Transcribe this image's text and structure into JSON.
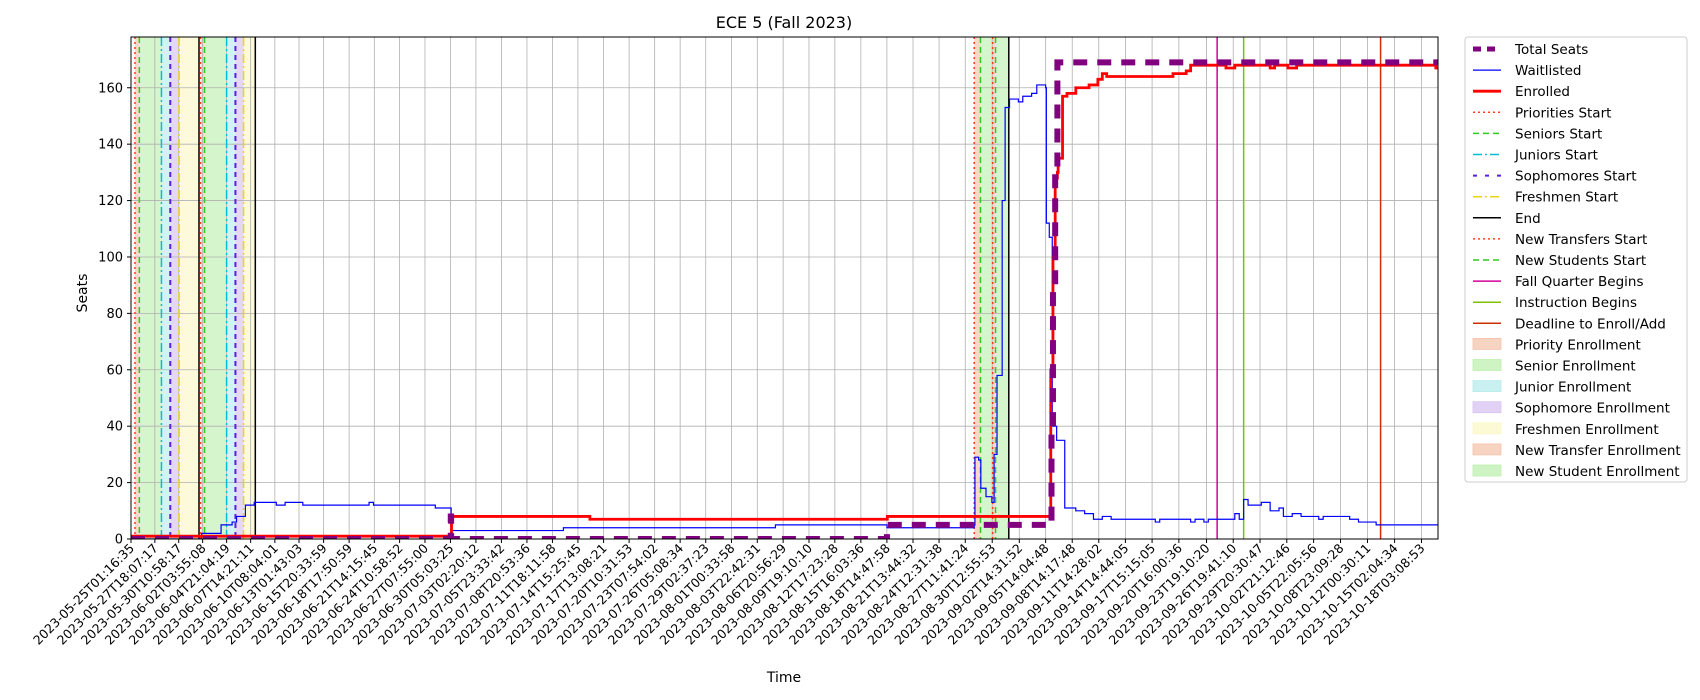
{
  "chart_data": {
    "type": "line",
    "title": "ECE 5 (Fall 2023)",
    "xlabel": "Time",
    "ylabel": "Seats",
    "x_is_time_axis": true,
    "ylim": [
      0,
      178
    ],
    "yticks": [
      0,
      20,
      40,
      60,
      80,
      100,
      120,
      140,
      160
    ],
    "grid": true,
    "legend_position": "outside-right",
    "time_window": [
      "2023-05-25T01:16:35",
      "2023-10-20T00:00:00"
    ],
    "xticks": [
      "2023-05-25T01:16:35",
      "2023-05-27T18:07:17",
      "2023-05-30T10:58:17",
      "2023-06-02T03:55:08",
      "2023-06-04T21:04:19",
      "2023-06-07T14:21:11",
      "2023-06-10T08:04:01",
      "2023-06-13T01:43:03",
      "2023-06-15T20:33:59",
      "2023-06-18T17:50:59",
      "2023-06-21T14:15:45",
      "2023-06-24T10:58:52",
      "2023-06-27T07:55:00",
      "2023-06-30T05:03:25",
      "2023-07-03T02:20:12",
      "2023-07-05T23:33:42",
      "2023-07-08T20:53:36",
      "2023-07-11T18:11:58",
      "2023-07-14T15:25:45",
      "2023-07-17T13:08:21",
      "2023-07-20T10:31:53",
      "2023-07-23T07:54:02",
      "2023-07-26T05:08:34",
      "2023-07-29T02:37:23",
      "2023-08-01T00:33:58",
      "2023-08-03T22:42:31",
      "2023-08-06T20:56:29",
      "2023-08-09T19:10:10",
      "2023-08-12T17:23:28",
      "2023-08-15T16:03:36",
      "2023-08-18T14:47:58",
      "2023-08-21T13:44:32",
      "2023-08-24T12:31:38",
      "2023-08-27T11:41:24",
      "2023-08-30T12:55:53",
      "2023-09-02T14:31:52",
      "2023-09-05T14:04:48",
      "2023-09-08T14:17:48",
      "2023-09-11T14:28:02",
      "2023-09-14T14:44:05",
      "2023-09-17T15:15:05",
      "2023-09-20T16:00:36",
      "2023-09-23T19:10:20",
      "2023-09-26T19:41:10",
      "2023-09-29T20:30:47",
      "2023-10-02T21:12:46",
      "2023-10-05T22:05:56",
      "2023-10-08T23:09:28",
      "2023-10-12T00:30:11",
      "2023-10-15T02:04:34",
      "2023-10-18T03:08:53"
    ],
    "periods": [
      {
        "label": "Priority Enrollment",
        "start": "2023-05-25T12:00",
        "end": "2023-05-26T00:00",
        "color": "#f4c4ac"
      },
      {
        "label": "Senior Enrollment",
        "start": "2023-05-26T00:00",
        "end": "2023-05-28T12:00",
        "color": "#bff0b0"
      },
      {
        "label": "Junior Enrollment",
        "start": "2023-05-28T12:00",
        "end": "2023-05-29T12:00",
        "color": "#b8ecec"
      },
      {
        "label": "Sophomore Enrollment",
        "start": "2023-05-29T12:00",
        "end": "2023-05-30T12:00",
        "color": "#d7c3f2"
      },
      {
        "label": "Freshmen Enrollment",
        "start": "2023-05-30T12:00",
        "end": "2023-06-01T18:00",
        "color": "#fbf8c6"
      },
      {
        "label": "Priority Enrollment",
        "start": "2023-06-01T22:00",
        "end": "2023-06-02T09:00",
        "color": "#f4c4ac"
      },
      {
        "label": "Senior Enrollment",
        "start": "2023-06-02T09:00",
        "end": "2023-06-04T21:00",
        "color": "#bff0b0"
      },
      {
        "label": "Junior Enrollment",
        "start": "2023-06-04T21:00",
        "end": "2023-06-05T21:00",
        "color": "#b8ecec"
      },
      {
        "label": "Sophomore Enrollment",
        "start": "2023-06-05T21:00",
        "end": "2023-06-06T19:00",
        "color": "#d7c3f2"
      },
      {
        "label": "Freshmen Enrollment",
        "start": "2023-06-06T19:00",
        "end": "2023-06-08T03:00",
        "color": "#fbf8c6"
      },
      {
        "label": "New Transfer Enrollment",
        "start": "2023-08-28T12:00",
        "end": "2023-08-29T05:00",
        "color": "#f4c4ac"
      },
      {
        "label": "New Student Enrollment",
        "start": "2023-08-29T05:00",
        "end": "2023-08-30T14:00",
        "color": "#bff0b0"
      },
      {
        "label": "New Transfer Enrollment",
        "start": "2023-08-30T14:00",
        "end": "2023-08-30T22:00",
        "color": "#f4c4ac"
      },
      {
        "label": "New Student Enrollment",
        "start": "2023-08-30T22:00",
        "end": "2023-09-01T10:00",
        "color": "#bff0b0"
      }
    ],
    "events": [
      {
        "label": "Priorities Start",
        "t": "2023-05-25T12:00",
        "color": "#ff3b1f",
        "dash": "2,3",
        "width": 1.5
      },
      {
        "label": "Seniors Start",
        "t": "2023-05-26T00:00",
        "color": "#2ecc1f",
        "dash": "6,4",
        "width": 1.5
      },
      {
        "label": "Juniors Start",
        "t": "2023-05-28T12:00",
        "color": "#00bfd8",
        "dash": "9,3,2,3",
        "width": 1.5
      },
      {
        "label": "Sophomores Start",
        "t": "2023-05-29T12:00",
        "color": "#5a1fe0",
        "dash": "5,4",
        "width": 2
      },
      {
        "label": "Freshmen Start",
        "t": "2023-05-30T12:00",
        "color": "#e8d800",
        "dash": "9,3,2,3",
        "width": 1.5
      },
      {
        "label": "End",
        "t": "2023-06-01T18:00",
        "color": "#000000",
        "dash": "",
        "width": 1.5
      },
      {
        "label": "Priorities Start",
        "t": "2023-06-01T22:00",
        "color": "#ff3b1f",
        "dash": "2,3",
        "width": 1.5
      },
      {
        "label": "Seniors Start",
        "t": "2023-06-02T09:00",
        "color": "#2ecc1f",
        "dash": "6,4",
        "width": 1.5
      },
      {
        "label": "Juniors Start",
        "t": "2023-06-04T21:00",
        "color": "#00bfd8",
        "dash": "9,3,2,3",
        "width": 1.5
      },
      {
        "label": "Sophomores Start",
        "t": "2023-06-05T21:00",
        "color": "#5a1fe0",
        "dash": "5,4",
        "width": 2
      },
      {
        "label": "Freshmen Start",
        "t": "2023-06-06T19:00",
        "color": "#e8d800",
        "dash": "9,3,2,3",
        "width": 1.5
      },
      {
        "label": "End",
        "t": "2023-06-08T03:00",
        "color": "#000000",
        "dash": "",
        "width": 1.5
      },
      {
        "label": "New Transfers Start",
        "t": "2023-08-28T12:00",
        "color": "#ff3b1f",
        "dash": "2,3",
        "width": 1.5
      },
      {
        "label": "New Students Start",
        "t": "2023-08-29T05:00",
        "color": "#2ecc1f",
        "dash": "6,4",
        "width": 1.5
      },
      {
        "label": "New Transfers Start",
        "t": "2023-08-30T14:00",
        "color": "#ff3b1f",
        "dash": "2,3",
        "width": 1.5
      },
      {
        "label": "New Students Start",
        "t": "2023-08-30T22:00",
        "color": "#2ecc1f",
        "dash": "6,4",
        "width": 1.5
      },
      {
        "label": "End",
        "t": "2023-09-01T10:00",
        "color": "#000000",
        "dash": "",
        "width": 1.5
      },
      {
        "label": "Fall Quarter Begins",
        "t": "2023-09-25T00:00",
        "color": "#d4009a",
        "dash": "",
        "width": 1.5
      },
      {
        "label": "Instruction Begins",
        "t": "2023-09-28T00:00",
        "color": "#7fbf00",
        "dash": "",
        "width": 1.5
      },
      {
        "label": "Deadline to Enroll/Add",
        "t": "2023-10-13T12:00",
        "color": "#cc2f00",
        "dash": "",
        "width": 1.5
      }
    ],
    "series": [
      {
        "name": "Total Seats",
        "color": "#800080",
        "width": 6,
        "dash": "14,10",
        "step": true,
        "points": [
          [
            "2023-05-25T01:16:35",
            0
          ],
          [
            "2023-06-30T05:00:00",
            0
          ],
          [
            "2023-06-30T06:00:00",
            8
          ],
          [
            "2023-06-30T07:00:00",
            0
          ],
          [
            "2023-08-18T14:00:00",
            0
          ],
          [
            "2023-08-18T15:00:00",
            5
          ],
          [
            "2023-09-06T02:00:00",
            5
          ],
          [
            "2023-09-06T06:00:00",
            40
          ],
          [
            "2023-09-06T10:00:00",
            90
          ],
          [
            "2023-09-06T16:00:00",
            130
          ],
          [
            "2023-09-06T22:00:00",
            169
          ],
          [
            "2023-10-20T00:00:00",
            169
          ]
        ]
      },
      {
        "name": "Waitlisted",
        "color": "#0000ff",
        "width": 1.2,
        "dash": "",
        "step": true,
        "points": [
          [
            "2023-05-25T01:16:35",
            0
          ],
          [
            "2023-06-02T00:00:00",
            0
          ],
          [
            "2023-06-02T01:00:00",
            2
          ],
          [
            "2023-06-04T00:00:00",
            2
          ],
          [
            "2023-06-04T06:00:00",
            5
          ],
          [
            "2023-06-05T12:00:00",
            6
          ],
          [
            "2023-06-06T00:00:00",
            8
          ],
          [
            "2023-06-07T00:00:00",
            12
          ],
          [
            "2023-06-08T00:00:00",
            13
          ],
          [
            "2023-06-10T12:00:00",
            12
          ],
          [
            "2023-06-11T12:00:00",
            13
          ],
          [
            "2023-06-13T12:00:00",
            12
          ],
          [
            "2023-06-21T00:00:00",
            13
          ],
          [
            "2023-06-21T12:00:00",
            12
          ],
          [
            "2023-06-28T12:00:00",
            11
          ],
          [
            "2023-06-30T07:00:00",
            3
          ],
          [
            "2023-07-13T00:00:00",
            4
          ],
          [
            "2023-08-06T00:00:00",
            5
          ],
          [
            "2023-08-18T15:00:00",
            4
          ],
          [
            "2023-08-28T12:00:00",
            5
          ],
          [
            "2023-08-28T14:00:00",
            29
          ],
          [
            "2023-08-29T00:00:00",
            28
          ],
          [
            "2023-08-29T06:00:00",
            18
          ],
          [
            "2023-08-29T20:00:00",
            15
          ],
          [
            "2023-08-30T12:00:00",
            13
          ],
          [
            "2023-08-30T18:00:00",
            30
          ],
          [
            "2023-08-31T02:00:00",
            58
          ],
          [
            "2023-08-31T16:00:00",
            120
          ],
          [
            "2023-09-01T00:00:00",
            153
          ],
          [
            "2023-09-01T12:00:00",
            156
          ],
          [
            "2023-09-02T12:00:00",
            155
          ],
          [
            "2023-09-03T00:00:00",
            157
          ],
          [
            "2023-09-04T00:00:00",
            158
          ],
          [
            "2023-09-04T14:00:00",
            161
          ],
          [
            "2023-09-05T14:00:00",
            160
          ],
          [
            "2023-09-05T16:00:00",
            112
          ],
          [
            "2023-09-06T00:00:00",
            107
          ],
          [
            "2023-09-06T08:00:00",
            40
          ],
          [
            "2023-09-06T20:00:00",
            35
          ],
          [
            "2023-09-07T18:00:00",
            11
          ],
          [
            "2023-09-09T00:00:00",
            10
          ],
          [
            "2023-09-10T00:00:00",
            9
          ],
          [
            "2023-09-11T00:00:00",
            7
          ],
          [
            "2023-09-12T00:00:00",
            8
          ],
          [
            "2023-09-13T00:00:00",
            7
          ],
          [
            "2023-09-18T00:00:00",
            6
          ],
          [
            "2023-09-18T12:00:00",
            7
          ],
          [
            "2023-09-22T00:00:00",
            6
          ],
          [
            "2023-09-22T12:00:00",
            7
          ],
          [
            "2023-09-23T12:00:00",
            6
          ],
          [
            "2023-09-24T00:00:00",
            7
          ],
          [
            "2023-09-27T00:00:00",
            9
          ],
          [
            "2023-09-27T12:00:00",
            7
          ],
          [
            "2023-09-28T00:00:00",
            14
          ],
          [
            "2023-09-28T12:00:00",
            12
          ],
          [
            "2023-09-30T00:00:00",
            13
          ],
          [
            "2023-10-01T00:00:00",
            10
          ],
          [
            "2023-10-02T00:00:00",
            11
          ],
          [
            "2023-10-02T12:00:00",
            8
          ],
          [
            "2023-10-03T12:00:00",
            9
          ],
          [
            "2023-10-04T12:00:00",
            8
          ],
          [
            "2023-10-06T12:00:00",
            7
          ],
          [
            "2023-10-07T00:00:00",
            8
          ],
          [
            "2023-10-10T00:00:00",
            7
          ],
          [
            "2023-10-11T00:00:00",
            6
          ],
          [
            "2023-10-13T00:00:00",
            5
          ],
          [
            "2023-10-20T00:00:00",
            5
          ]
        ]
      },
      {
        "name": "Enrolled",
        "color": "#ff0000",
        "width": 2.8,
        "dash": "",
        "step": true,
        "points": [
          [
            "2023-05-25T01:16:35",
            1
          ],
          [
            "2023-06-30T05:00:00",
            1
          ],
          [
            "2023-06-30T08:00:00",
            8
          ],
          [
            "2023-07-15T12:00:00",
            8
          ],
          [
            "2023-07-16T00:00:00",
            7
          ],
          [
            "2023-08-18T14:00:00",
            7
          ],
          [
            "2023-08-18T16:00:00",
            8
          ],
          [
            "2023-09-05T20:00:00",
            8
          ],
          [
            "2023-09-06T04:00:00",
            60
          ],
          [
            "2023-09-06T10:00:00",
            100
          ],
          [
            "2023-09-06T16:00:00",
            128
          ],
          [
            "2023-09-06T22:00:00",
            130
          ],
          [
            "2023-09-07T00:00:00",
            135
          ],
          [
            "2023-09-07T12:00:00",
            157
          ],
          [
            "2023-09-08T00:00:00",
            158
          ],
          [
            "2023-09-09T00:00:00",
            160
          ],
          [
            "2023-09-10T12:00:00",
            161
          ],
          [
            "2023-09-11T12:00:00",
            163
          ],
          [
            "2023-09-12T00:00:00",
            165
          ],
          [
            "2023-09-12T12:00:00",
            164
          ],
          [
            "2023-09-20T00:00:00",
            165
          ],
          [
            "2023-09-21T12:00:00",
            166
          ],
          [
            "2023-09-22T00:00:00",
            168
          ],
          [
            "2023-09-26T00:00:00",
            167
          ],
          [
            "2023-09-27T00:00:00",
            168
          ],
          [
            "2023-10-01T00:00:00",
            167
          ],
          [
            "2023-10-01T12:00:00",
            168
          ],
          [
            "2023-10-03T00:00:00",
            167
          ],
          [
            "2023-10-04T00:00:00",
            168
          ],
          [
            "2023-10-19T12:00:00",
            168
          ],
          [
            "2023-10-19T18:00:00",
            167
          ],
          [
            "2023-10-20T00:00:00",
            167
          ]
        ]
      }
    ],
    "legend": [
      {
        "label": "Total Seats",
        "kind": "line",
        "color": "#800080",
        "dash": "8,6",
        "width": 5
      },
      {
        "label": "Waitlisted",
        "kind": "line",
        "color": "#0000ff",
        "dash": "",
        "width": 1.2
      },
      {
        "label": "Enrolled",
        "kind": "line",
        "color": "#ff0000",
        "dash": "",
        "width": 2.8
      },
      {
        "label": "Priorities Start",
        "kind": "line",
        "color": "#ff3b1f",
        "dash": "2,3",
        "width": 1.5
      },
      {
        "label": "Seniors Start",
        "kind": "line",
        "color": "#2ecc1f",
        "dash": "6,4",
        "width": 1.5
      },
      {
        "label": "Juniors Start",
        "kind": "line",
        "color": "#00bfd8",
        "dash": "9,3,2,3",
        "width": 1.5
      },
      {
        "label": "Sophomores Start",
        "kind": "line",
        "color": "#5a1fe0",
        "dash": "4,8",
        "width": 2
      },
      {
        "label": "Freshmen Start",
        "kind": "line",
        "color": "#e8d800",
        "dash": "9,3,2,3",
        "width": 1.5
      },
      {
        "label": "End",
        "kind": "line",
        "color": "#000000",
        "dash": "",
        "width": 1.5
      },
      {
        "label": "New Transfers Start",
        "kind": "line",
        "color": "#ff3b1f",
        "dash": "2,3",
        "width": 1.5
      },
      {
        "label": "New Students Start",
        "kind": "line",
        "color": "#2ecc1f",
        "dash": "6,4",
        "width": 1.5
      },
      {
        "label": "Fall Quarter Begins",
        "kind": "line",
        "color": "#d4009a",
        "dash": "",
        "width": 1.5
      },
      {
        "label": "Instruction Begins",
        "kind": "line",
        "color": "#7fbf00",
        "dash": "",
        "width": 1.5
      },
      {
        "label": "Deadline to Enroll/Add",
        "kind": "line",
        "color": "#cc2f00",
        "dash": "",
        "width": 1.5
      },
      {
        "label": "Priority Enrollment",
        "kind": "patch",
        "color": "#f4c4ac"
      },
      {
        "label": "Senior Enrollment",
        "kind": "patch",
        "color": "#bff0b0"
      },
      {
        "label": "Junior Enrollment",
        "kind": "patch",
        "color": "#b8ecec"
      },
      {
        "label": "Sophomore Enrollment",
        "kind": "patch",
        "color": "#d7c3f2"
      },
      {
        "label": "Freshmen Enrollment",
        "kind": "patch",
        "color": "#fbf8c6"
      },
      {
        "label": "New Transfer Enrollment",
        "kind": "patch",
        "color": "#f4c4ac"
      },
      {
        "label": "New Student Enrollment",
        "kind": "patch",
        "color": "#bff0b0"
      }
    ]
  }
}
